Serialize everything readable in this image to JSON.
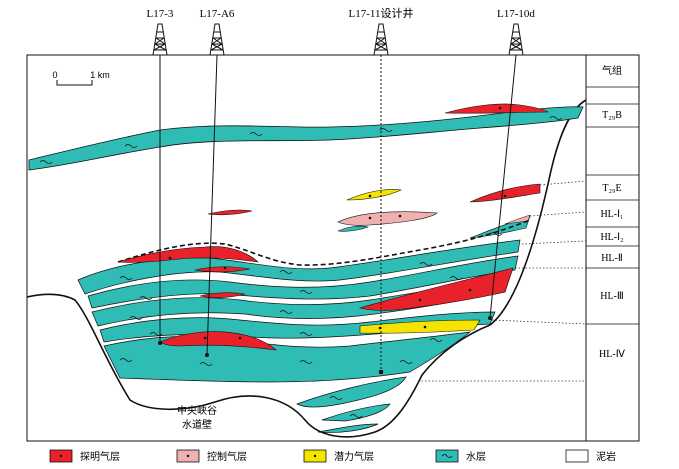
{
  "wells": [
    {
      "id": "l17-3",
      "name": "L17-3"
    },
    {
      "id": "l17-a6",
      "name": "L17-A6"
    },
    {
      "id": "l17-11",
      "name": "L17-11设计井"
    },
    {
      "id": "l17-10d",
      "name": "L17-10d"
    }
  ],
  "scale_bar": {
    "zero": "0",
    "distance": "1 km"
  },
  "formation_column": {
    "header": "气组",
    "units": [
      {
        "name": "T₂₉B"
      },
      {
        "name": "T₂₉E"
      },
      {
        "name": "HL-Ⅰ₁"
      },
      {
        "name": "HL-Ⅰ₂"
      },
      {
        "name": "HL-Ⅱ"
      },
      {
        "name": "HL-Ⅲ"
      },
      {
        "name": "HL-Ⅳ"
      }
    ]
  },
  "annotation": {
    "line1": "中央峡谷",
    "line2": "水道壁"
  },
  "legend": [
    {
      "id": "proven-gas",
      "label": "探明气层",
      "color": "#e8212a"
    },
    {
      "id": "controlled-gas",
      "label": "控制气层",
      "color": "#f0b0b0"
    },
    {
      "id": "potential-gas",
      "label": "潜力气层",
      "color": "#f5e400"
    },
    {
      "id": "water",
      "label": "水层",
      "color": "#2ebcb4"
    },
    {
      "id": "mudstone",
      "label": "泥岩",
      "color": "#ffffff"
    }
  ],
  "colors": {
    "water": "#2ebcb4",
    "proven": "#e8212a",
    "controlled": "#f0b0b0",
    "potential": "#f5e400",
    "outline": "#111111"
  },
  "icons": {
    "derrick": "oil-derrick-icon",
    "gas_symbol": "gas-symbol-icon",
    "water_symbol": "water-tilde-icon"
  }
}
